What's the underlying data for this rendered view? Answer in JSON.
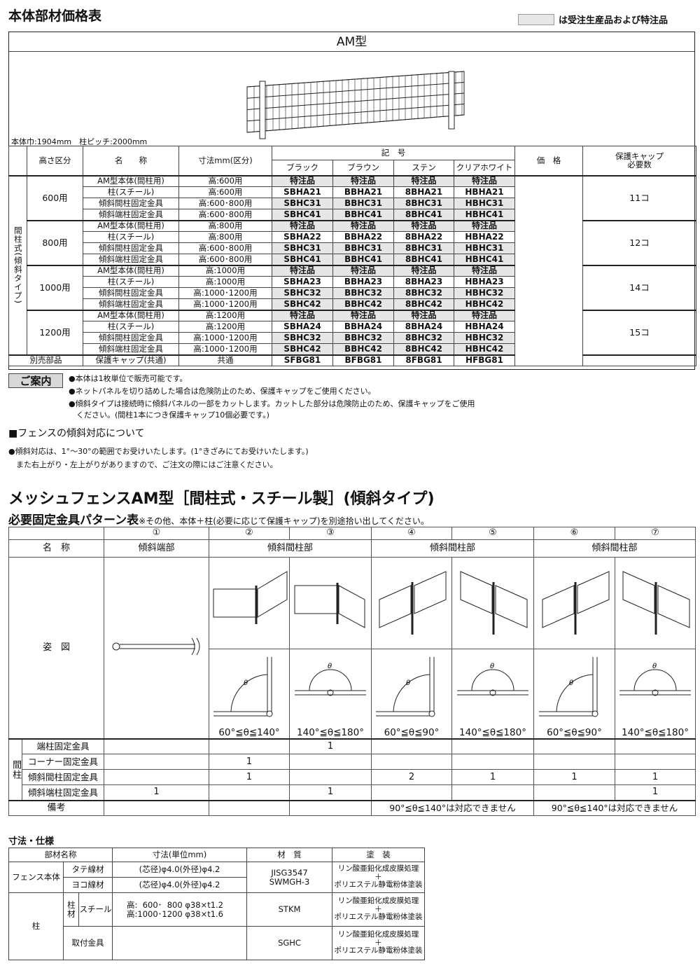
{
  "header": {
    "title": "本体部材価格表",
    "legend_label": "は受注生産品および特注品"
  },
  "model": {
    "name": "AM型",
    "sizes": "本体巾:1904mm　柱ピッチ:2000mm"
  },
  "price_table": {
    "headers": {
      "height": "高さ区分",
      "name": "名　　称",
      "dim": "寸法mm(区分)",
      "codes": "記　号",
      "colors": [
        "ブラック",
        "ブラウン",
        "ステン",
        "クリアホワイト"
      ],
      "price": "価　格",
      "caps": "保護キャップ\n必要数"
    },
    "side_label": "間柱式(傾斜タイプ)",
    "groups": [
      {
        "height": "600用",
        "caps": "11コ",
        "rows": [
          {
            "name": "AM型本体(間柱用)",
            "dim": "高:600用",
            "codes": [
              "特注品",
              "特注品",
              "特注品",
              "特注品"
            ]
          },
          {
            "name": "柱(スチール)",
            "dim": "高:600用",
            "codes": [
              "SBHA21",
              "BBHA21",
              "8BHA21",
              "HBHA21"
            ]
          },
          {
            "name": "傾斜間柱固定金具",
            "dim": "高:600･800用",
            "codes": [
              "SBHC31",
              "BBHC31",
              "8BHC31",
              "HBHC31"
            ]
          },
          {
            "name": "傾斜端柱固定金具",
            "dim": "高:600･800用",
            "codes": [
              "SBHC41",
              "BBHC41",
              "8BHC41",
              "HBHC41"
            ]
          }
        ]
      },
      {
        "height": "800用",
        "caps": "12コ",
        "rows": [
          {
            "name": "AM型本体(間柱用)",
            "dim": "高:800用",
            "codes": [
              "特注品",
              "特注品",
              "特注品",
              "特注品"
            ]
          },
          {
            "name": "柱(スチール)",
            "dim": "高:800用",
            "codes": [
              "SBHA22",
              "BBHA22",
              "8BHA22",
              "HBHA22"
            ]
          },
          {
            "name": "傾斜間柱固定金具",
            "dim": "高:600･800用",
            "codes": [
              "SBHC31",
              "BBHC31",
              "8BHC31",
              "HBHC31"
            ]
          },
          {
            "name": "傾斜端柱固定金具",
            "dim": "高:600･800用",
            "codes": [
              "SBHC41",
              "BBHC41",
              "8BHC41",
              "HBHC41"
            ]
          }
        ]
      },
      {
        "height": "1000用",
        "caps": "14コ",
        "rows": [
          {
            "name": "AM型本体(間柱用)",
            "dim": "高:1000用",
            "codes": [
              "特注品",
              "特注品",
              "特注品",
              "特注品"
            ]
          },
          {
            "name": "柱(スチール)",
            "dim": "高:1000用",
            "codes": [
              "SBHA23",
              "BBHA23",
              "8BHA23",
              "HBHA23"
            ]
          },
          {
            "name": "傾斜間柱固定金具",
            "dim": "高:1000･1200用",
            "codes": [
              "SBHC32",
              "BBHC32",
              "8BHC32",
              "HBHC32"
            ]
          },
          {
            "name": "傾斜端柱固定金具",
            "dim": "高:1000･1200用",
            "codes": [
              "SBHC42",
              "BBHC42",
              "8BHC42",
              "HBHC42"
            ]
          }
        ]
      },
      {
        "height": "1200用",
        "caps": "15コ",
        "rows": [
          {
            "name": "AM型本体(間柱用)",
            "dim": "高:1200用",
            "codes": [
              "特注品",
              "特注品",
              "特注品",
              "特注品"
            ]
          },
          {
            "name": "柱(スチール)",
            "dim": "高:1200用",
            "codes": [
              "SBHA24",
              "BBHA24",
              "8BHA24",
              "HBHA24"
            ]
          },
          {
            "name": "傾斜間柱固定金具",
            "dim": "高:1000･1200用",
            "codes": [
              "SBHC32",
              "BBHC32",
              "8BHC32",
              "HBHC32"
            ]
          },
          {
            "name": "傾斜端柱固定金具",
            "dim": "高:1000･1200用",
            "codes": [
              "SBHC42",
              "BBHC42",
              "8BHC42",
              "HBHC42"
            ]
          }
        ]
      }
    ],
    "extra": {
      "label": "別売部品",
      "name": "保護キャップ(共通)",
      "dim": "共通",
      "codes": [
        "SFBG81",
        "BFBG81",
        "8FBG81",
        "HFBG81"
      ]
    }
  },
  "guide": {
    "label": "ご案内",
    "notes": [
      "●本体は1枚単位で販売可能です。",
      "●ネットパネルを切り詰めした場合は危険防止のため、保護キャップをご使用ください。",
      "●傾斜タイプは接続時に傾斜パネルの一部をカットします。カットした部分は危険防止のため、保護キャップをご使用",
      "　ください。(間柱1本につき保護キャップ10個必要です。)"
    ]
  },
  "slope": {
    "title": "■フェンスの傾斜対応について",
    "notes": [
      "●傾斜対応は、1°～30°の範囲でお受けいたします。(1°きざみにてお受けいたします。)",
      "　また右上がり・左上がりがありますので、ご注文の際にはご注意ください。"
    ]
  },
  "pattern": {
    "title": "メッシュフェンスAM型［間柱式・スチール製］(傾斜タイプ)",
    "subtitle": "必要固定金具パターン表",
    "subtitle_note": "※その他、本体＋柱(必要に応じて保護キャップ)を別途拾い出してください。",
    "numbers": [
      "①",
      "②",
      "③",
      "④",
      "⑤",
      "⑥",
      "⑦"
    ],
    "name_label": "名　称",
    "names": [
      "傾斜端部",
      "傾斜間柱部",
      "傾斜間柱部",
      "傾斜間柱部"
    ],
    "figure_label": "姿　図",
    "angles": [
      "60°≦θ≦140°",
      "140°≦θ≦180°",
      "60°≦θ≦90°",
      "140°≦θ≦180°",
      "60°≦θ≦90°",
      "140°≦θ≦180°"
    ],
    "theta": "θ",
    "side_label": "間柱",
    "rows": [
      {
        "name": "端柱固定金具",
        "values": [
          "",
          "",
          "1",
          "",
          "",
          "",
          ""
        ]
      },
      {
        "name": "コーナー固定金具",
        "values": [
          "",
          "1",
          "",
          "",
          "",
          "",
          ""
        ]
      },
      {
        "name": "傾斜間柱固定金具",
        "values": [
          "",
          "1",
          "",
          "2",
          "1",
          "1",
          "1"
        ]
      },
      {
        "name": "傾斜端柱固定金具",
        "values": [
          "1",
          "",
          "1",
          "",
          "",
          "",
          "1"
        ]
      }
    ],
    "remarks_label": "備考",
    "remarks": [
      "90°≦θ≦140°は対応できません",
      "90°≦θ≦140°は対応できません"
    ]
  },
  "spec": {
    "title": "寸法・仕様",
    "headers": [
      "部材名称",
      "寸法(単位mm)",
      "材　質",
      "塗　装"
    ],
    "fence_body": "フェンス本体",
    "tate": "タテ線材",
    "yoko": "ヨコ線材",
    "wire_dim": "(芯径)φ4.0(外径)φ4.2",
    "wire_material": "JISG3547\nSWMGH-3",
    "post": "柱",
    "post_material_label": "柱材",
    "steel": "スチール",
    "post_dim": "高:  600･  800 φ38×t1.2\n高:1000･1200 φ38×t1.6",
    "post_material": "STKM",
    "fitting": "取付金具",
    "fitting_material": "SGHC",
    "coating": "リン酸亜鉛化成皮膜処理\n＋\nポリエステル静電粉体塗装"
  }
}
